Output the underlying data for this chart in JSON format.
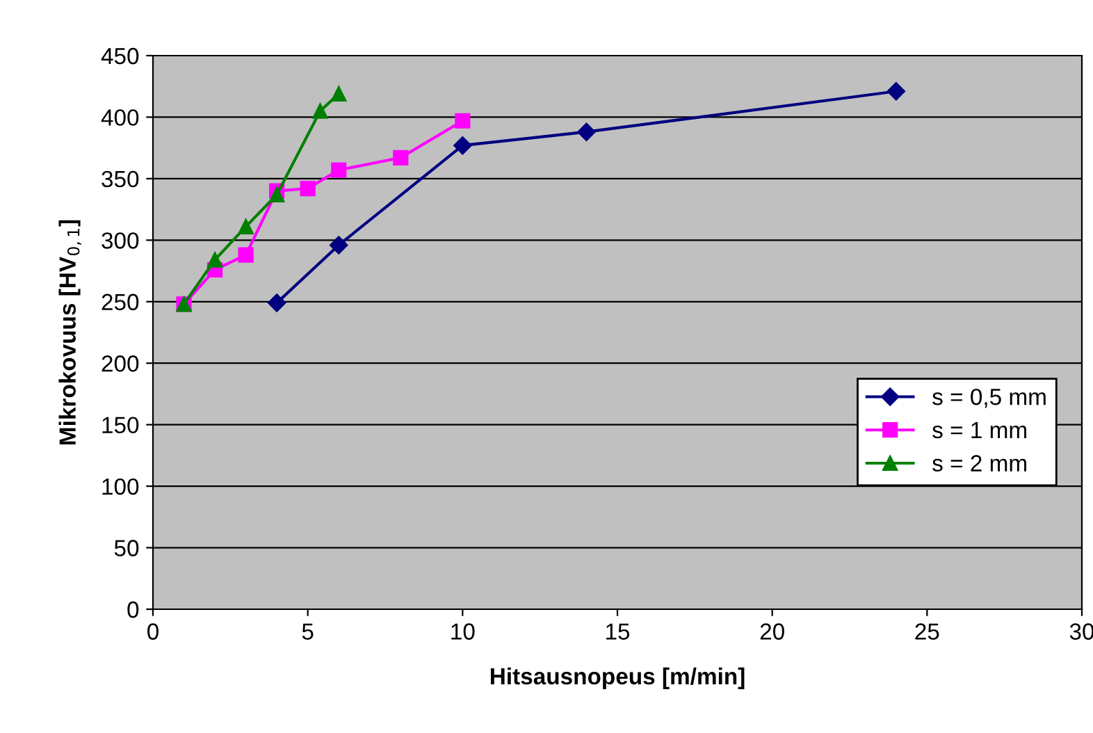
{
  "chart_data": {
    "type": "line",
    "xlabel": "Hitsausnopeus [m/min]",
    "ylabel": "Mikrokovuus [HV$_{0,1}$]",
    "xlim": [
      0,
      30
    ],
    "xticks": [
      0,
      5,
      10,
      15,
      20,
      25,
      30
    ],
    "ylim": [
      0,
      450
    ],
    "yticks": [
      0,
      50,
      100,
      150,
      200,
      250,
      300,
      350,
      400,
      450
    ],
    "grid": "y",
    "legend": "right",
    "series": [
      {
        "name": "s = 0,5 mm",
        "color": "#000080",
        "marker": "diamond",
        "x": [
          4,
          6,
          10,
          14,
          24
        ],
        "values": [
          249,
          296,
          377,
          388,
          421
        ]
      },
      {
        "name": "s = 1 mm",
        "color": "#ff00ff",
        "marker": "square",
        "x": [
          1,
          2,
          3,
          4,
          5,
          6,
          8,
          10
        ],
        "values": [
          248,
          276,
          288,
          340,
          342,
          357,
          367,
          397
        ]
      },
      {
        "name": "s = 2 mm",
        "color": "#008000",
        "marker": "triangle",
        "x": [
          1,
          2,
          3,
          4,
          5.4,
          6
        ],
        "values": [
          248,
          284,
          311,
          337,
          405,
          419
        ]
      }
    ]
  }
}
